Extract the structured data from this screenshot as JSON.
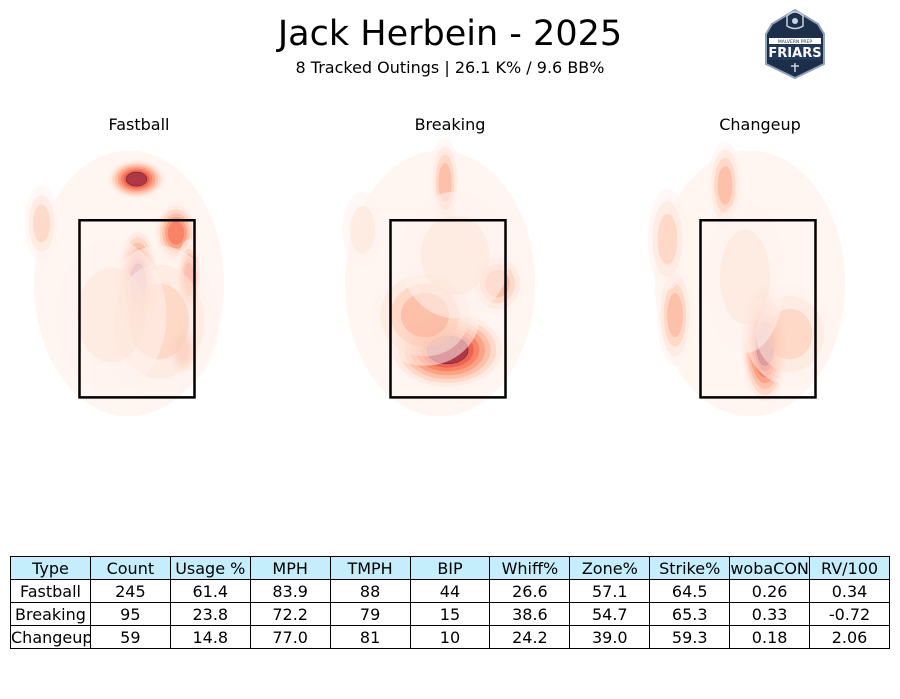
{
  "header": {
    "title": "Jack Herbein - 2025",
    "subtitle": "8 Tracked Outings | 26.1 K% / 9.6 BB%"
  },
  "logo": {
    "icon": "friars-shield-logo",
    "text": "FRIARS",
    "small_text": "MALVERN PREP"
  },
  "colors": {
    "table_header": "#c4eefc",
    "heat_low": "#fff0ea",
    "heat_high": "#a83245",
    "zone": "#000000"
  },
  "chart_data": [
    {
      "type": "heatmap",
      "title": "Fastball",
      "hotspots": [
        {
          "x": -0.05,
          "y": 4.25,
          "w": 0.3,
          "h": 0.16,
          "level": 1.0
        },
        {
          "x": -0.02,
          "y": 2.6,
          "w": 0.22,
          "h": 0.45,
          "level": 0.95
        },
        {
          "x": 0.74,
          "y": 3.4,
          "w": 0.22,
          "h": 0.25,
          "level": 0.8
        },
        {
          "x": 1.0,
          "y": 2.7,
          "w": 0.13,
          "h": 0.3,
          "level": 0.75
        },
        {
          "x": 0.88,
          "y": 1.55,
          "w": 0.16,
          "h": 0.22,
          "level": 0.7
        },
        {
          "x": -1.95,
          "y": 3.55,
          "w": 0.17,
          "h": 0.3,
          "level": 0.35
        },
        {
          "x": 0.4,
          "y": 2.0,
          "w": 0.6,
          "h": 0.6,
          "level": 0.4
        },
        {
          "x": -0.55,
          "y": 2.1,
          "w": 0.55,
          "h": 0.6,
          "level": 0.2
        }
      ]
    },
    {
      "type": "heatmap",
      "title": "Breaking",
      "hotspots": [
        {
          "x": -0.05,
          "y": 1.55,
          "w": 0.6,
          "h": 0.32,
          "level": 1.0
        },
        {
          "x": -0.5,
          "y": 2.1,
          "w": 0.55,
          "h": 0.4,
          "level": 0.55
        },
        {
          "x": 0.95,
          "y": 2.6,
          "w": 0.28,
          "h": 0.25,
          "level": 0.5
        },
        {
          "x": -0.1,
          "y": 4.2,
          "w": 0.15,
          "h": 0.35,
          "level": 0.45
        },
        {
          "x": 0.1,
          "y": 3.05,
          "w": 0.55,
          "h": 0.5,
          "level": 0.3
        },
        {
          "x": -1.75,
          "y": 3.45,
          "w": 0.2,
          "h": 0.3,
          "level": 0.25
        }
      ]
    },
    {
      "type": "heatmap",
      "title": "Changeup",
      "hotspots": [
        {
          "x": 0.1,
          "y": 1.65,
          "w": 0.25,
          "h": 0.5,
          "level": 1.0
        },
        {
          "x": -1.7,
          "y": 2.1,
          "w": 0.18,
          "h": 0.4,
          "level": 0.55
        },
        {
          "x": -0.7,
          "y": 4.15,
          "w": 0.17,
          "h": 0.35,
          "level": 0.55
        },
        {
          "x": -1.85,
          "y": 3.3,
          "w": 0.2,
          "h": 0.4,
          "level": 0.35
        },
        {
          "x": 0.6,
          "y": 1.8,
          "w": 0.45,
          "h": 0.4,
          "level": 0.4
        },
        {
          "x": -0.3,
          "y": 2.7,
          "w": 0.4,
          "h": 0.6,
          "level": 0.25
        }
      ]
    }
  ],
  "table": {
    "columns": [
      "Type",
      "Count",
      "Usage %",
      "MPH",
      "TMPH",
      "BIP",
      "Whiff%",
      "Zone%",
      "Strike%",
      "wobaCON",
      "RV/100"
    ],
    "rows": [
      [
        "Fastball",
        "245",
        "61.4",
        "83.9",
        "88",
        "44",
        "26.6",
        "57.1",
        "64.5",
        "0.26",
        "0.34"
      ],
      [
        "Breaking",
        "95",
        "23.8",
        "72.2",
        "79",
        "15",
        "38.6",
        "54.7",
        "65.3",
        "0.33",
        "-0.72"
      ],
      [
        "Changeup",
        "59",
        "14.8",
        "77.0",
        "81",
        "10",
        "24.2",
        "39.0",
        "59.3",
        "0.18",
        "2.06"
      ]
    ]
  }
}
